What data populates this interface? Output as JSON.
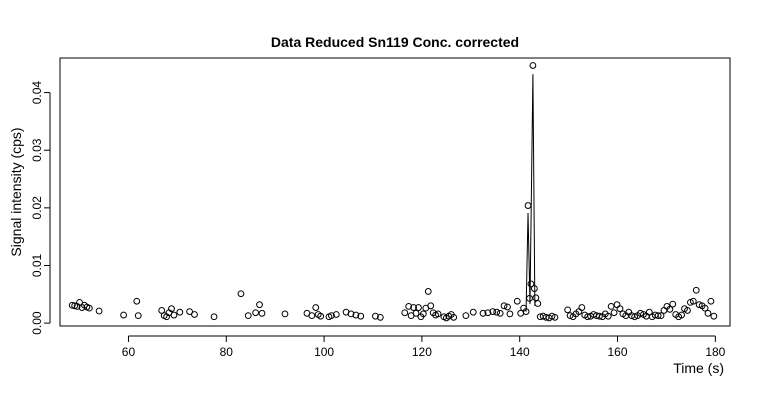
{
  "chart_data": {
    "type": "scatter",
    "title": "Data Reduced Sn119 Conc. corrected",
    "xlabel": "Time (s)",
    "ylabel": "Signal intensity (cps)",
    "xlim": [
      46,
      183
    ],
    "ylim": [
      -0.0005,
      0.046
    ],
    "x_ticks": [
      60,
      80,
      100,
      120,
      140,
      160,
      180
    ],
    "x_tick_labels": [
      "60",
      "80",
      "100",
      "120",
      "140",
      "160",
      "180"
    ],
    "y_ticks": [
      0.0,
      0.01,
      0.02,
      0.03,
      0.04
    ],
    "y_tick_labels": [
      "0.00",
      "0.01",
      "0.02",
      "0.03",
      "0.04"
    ],
    "grid": false,
    "series": [
      {
        "marker": "open-circle",
        "points": [
          [
            48.5,
            0.0031
          ],
          [
            49.0,
            0.003
          ],
          [
            49.5,
            0.0029
          ],
          [
            50.0,
            0.0036
          ],
          [
            50.5,
            0.0027
          ],
          [
            51.0,
            0.0031
          ],
          [
            51.5,
            0.0028
          ],
          [
            52.0,
            0.0026
          ],
          [
            54.0,
            0.0021
          ],
          [
            59.0,
            0.0014
          ],
          [
            61.7,
            0.0038
          ],
          [
            62.0,
            0.0013
          ],
          [
            66.8,
            0.0022
          ],
          [
            67.3,
            0.0013
          ],
          [
            67.8,
            0.0011
          ],
          [
            68.3,
            0.0018
          ],
          [
            68.8,
            0.0025
          ],
          [
            69.3,
            0.0014
          ],
          [
            70.5,
            0.0019
          ],
          [
            72.5,
            0.002
          ],
          [
            73.5,
            0.0015
          ],
          [
            77.5,
            0.0011
          ],
          [
            83.0,
            0.0051
          ],
          [
            84.5,
            0.0013
          ],
          [
            86.0,
            0.0018
          ],
          [
            86.8,
            0.0032
          ],
          [
            87.3,
            0.0017
          ],
          [
            92.0,
            0.0016
          ],
          [
            96.5,
            0.0017
          ],
          [
            97.5,
            0.0013
          ],
          [
            98.3,
            0.0027
          ],
          [
            98.8,
            0.0015
          ],
          [
            99.3,
            0.0012
          ],
          [
            101.0,
            0.0011
          ],
          [
            101.5,
            0.0013
          ],
          [
            102.5,
            0.0015
          ],
          [
            104.5,
            0.0019
          ],
          [
            105.5,
            0.0016
          ],
          [
            106.5,
            0.0014
          ],
          [
            107.5,
            0.0012
          ],
          [
            110.5,
            0.0012
          ],
          [
            111.5,
            0.001
          ],
          [
            116.5,
            0.0018
          ],
          [
            117.3,
            0.0029
          ],
          [
            117.8,
            0.0013
          ],
          [
            118.3,
            0.0027
          ],
          [
            118.8,
            0.0017
          ],
          [
            119.3,
            0.0027
          ],
          [
            119.8,
            0.0011
          ],
          [
            120.3,
            0.0016
          ],
          [
            120.8,
            0.0026
          ],
          [
            121.3,
            0.0055
          ],
          [
            121.8,
            0.003
          ],
          [
            122.3,
            0.0018
          ],
          [
            122.8,
            0.0014
          ],
          [
            123.3,
            0.0016
          ],
          [
            124.5,
            0.0011
          ],
          [
            125.0,
            0.0009
          ],
          [
            125.5,
            0.0012
          ],
          [
            126.0,
            0.0015
          ],
          [
            126.5,
            0.001
          ],
          [
            129.0,
            0.0013
          ],
          [
            130.5,
            0.0019
          ],
          [
            132.5,
            0.0017
          ],
          [
            133.5,
            0.0018
          ],
          [
            134.5,
            0.002
          ],
          [
            135.3,
            0.0019
          ],
          [
            136.0,
            0.0017
          ],
          [
            136.8,
            0.003
          ],
          [
            137.5,
            0.0028
          ],
          [
            138.0,
            0.0016
          ],
          [
            139.5,
            0.0038
          ],
          [
            140.2,
            0.0017
          ],
          [
            140.8,
            0.0026
          ],
          [
            141.3,
            0.002
          ],
          [
            141.7,
            0.0204
          ],
          [
            142.0,
            0.0043
          ],
          [
            142.3,
            0.0068
          ],
          [
            142.7,
            0.0447
          ],
          [
            143.0,
            0.006
          ],
          [
            143.3,
            0.0044
          ],
          [
            143.7,
            0.0034
          ],
          [
            144.2,
            0.0011
          ],
          [
            144.8,
            0.0012
          ],
          [
            145.4,
            0.001
          ],
          [
            146.0,
            0.0009
          ],
          [
            146.6,
            0.0012
          ],
          [
            147.2,
            0.001
          ],
          [
            149.8,
            0.0023
          ],
          [
            150.3,
            0.0013
          ],
          [
            150.9,
            0.0011
          ],
          [
            151.5,
            0.0016
          ],
          [
            152.1,
            0.002
          ],
          [
            152.7,
            0.0027
          ],
          [
            153.3,
            0.0014
          ],
          [
            153.9,
            0.0011
          ],
          [
            154.5,
            0.0012
          ],
          [
            155.1,
            0.0015
          ],
          [
            155.7,
            0.0013
          ],
          [
            156.3,
            0.0012
          ],
          [
            156.9,
            0.0011
          ],
          [
            157.5,
            0.0016
          ],
          [
            158.1,
            0.0012
          ],
          [
            158.7,
            0.0029
          ],
          [
            159.3,
            0.0018
          ],
          [
            159.9,
            0.0032
          ],
          [
            160.5,
            0.0025
          ],
          [
            161.1,
            0.0016
          ],
          [
            161.7,
            0.0013
          ],
          [
            162.3,
            0.0019
          ],
          [
            162.9,
            0.0013
          ],
          [
            163.5,
            0.0011
          ],
          [
            164.1,
            0.0013
          ],
          [
            164.7,
            0.0017
          ],
          [
            165.3,
            0.0015
          ],
          [
            165.9,
            0.0012
          ],
          [
            166.5,
            0.0019
          ],
          [
            167.1,
            0.0011
          ],
          [
            167.7,
            0.0014
          ],
          [
            168.3,
            0.0013
          ],
          [
            168.9,
            0.0013
          ],
          [
            169.5,
            0.0022
          ],
          [
            170.1,
            0.0029
          ],
          [
            170.7,
            0.0024
          ],
          [
            171.3,
            0.0033
          ],
          [
            171.9,
            0.0015
          ],
          [
            172.5,
            0.0011
          ],
          [
            173.1,
            0.0014
          ],
          [
            173.7,
            0.0025
          ],
          [
            174.3,
            0.0022
          ],
          [
            174.9,
            0.0036
          ],
          [
            175.5,
            0.0038
          ],
          [
            176.1,
            0.0057
          ],
          [
            176.7,
            0.0032
          ],
          [
            177.3,
            0.003
          ],
          [
            177.9,
            0.0026
          ],
          [
            178.5,
            0.0017
          ],
          [
            179.1,
            0.0038
          ],
          [
            179.7,
            0.0012
          ]
        ]
      }
    ],
    "connecting_line": {
      "points": [
        [
          141.3,
          0.002
        ],
        [
          141.7,
          0.0191
        ],
        [
          142.1,
          0.0033
        ],
        [
          142.7,
          0.0432
        ],
        [
          143.1,
          0.003
        ]
      ]
    },
    "colors": {
      "points": "#000000",
      "line": "#000000",
      "axes": "#000000"
    }
  }
}
